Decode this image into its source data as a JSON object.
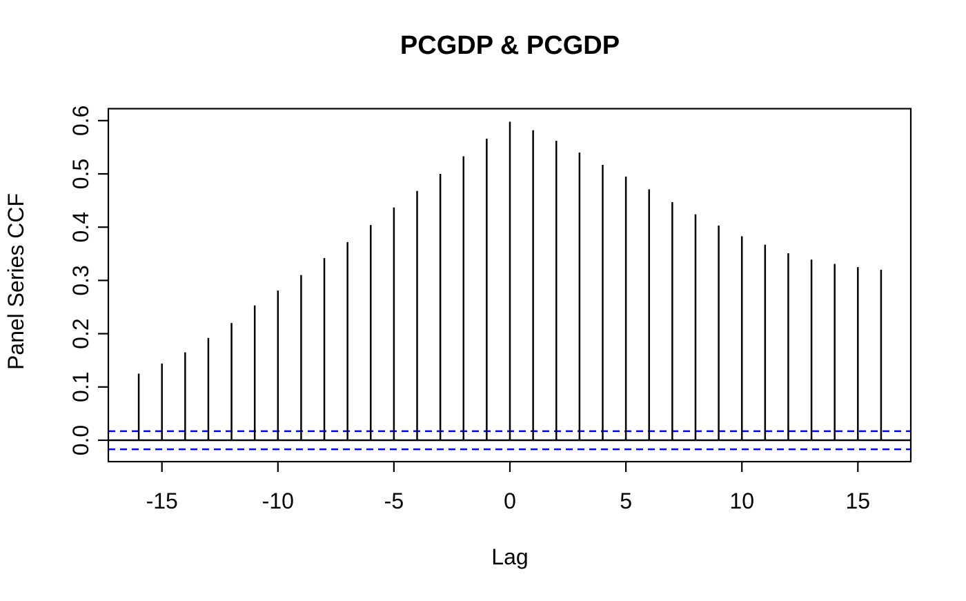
{
  "chart_data": {
    "type": "bar",
    "subtype": "ccf-needle-plot",
    "title": "PCGDP & PCGDP",
    "xlabel": "Lag",
    "ylabel": "Panel Series CCF",
    "x": [
      -16,
      -15,
      -14,
      -13,
      -12,
      -11,
      -10,
      -9,
      -8,
      -7,
      -6,
      -5,
      -4,
      -3,
      -2,
      -1,
      0,
      1,
      2,
      3,
      4,
      5,
      6,
      7,
      8,
      9,
      10,
      11,
      12,
      13,
      14,
      15,
      16
    ],
    "values": [
      0.125,
      0.144,
      0.165,
      0.192,
      0.22,
      0.253,
      0.281,
      0.31,
      0.342,
      0.372,
      0.404,
      0.437,
      0.468,
      0.5,
      0.533,
      0.566,
      0.598,
      0.582,
      0.562,
      0.54,
      0.517,
      0.495,
      0.471,
      0.447,
      0.424,
      0.403,
      0.383,
      0.367,
      0.351,
      0.339,
      0.331,
      0.325,
      0.32
    ],
    "zero_line": 0,
    "confidence_bounds": {
      "upper": 0.017,
      "lower": -0.017,
      "line_style": "dashed",
      "color": "#0000FF"
    },
    "x_ticks": [
      -15,
      -10,
      -5,
      0,
      5,
      10,
      15
    ],
    "x_tick_labels": [
      "-15",
      "-10",
      "-5",
      "0",
      "5",
      "10",
      "15"
    ],
    "y_ticks": [
      0.0,
      0.1,
      0.2,
      0.3,
      0.4,
      0.5,
      0.6
    ],
    "y_tick_labels": [
      "0.0",
      "0.1",
      "0.2",
      "0.3",
      "0.4",
      "0.5",
      "0.6"
    ],
    "xlim": [
      -17.3,
      17.3
    ],
    "ylim": [
      -0.04,
      0.62
    ],
    "grid": false,
    "legend": null,
    "colors": {
      "bar": "#000000",
      "axis": "#000000",
      "text": "#000000",
      "background": "#FFFFFF",
      "confidence": "#0000FF"
    }
  }
}
